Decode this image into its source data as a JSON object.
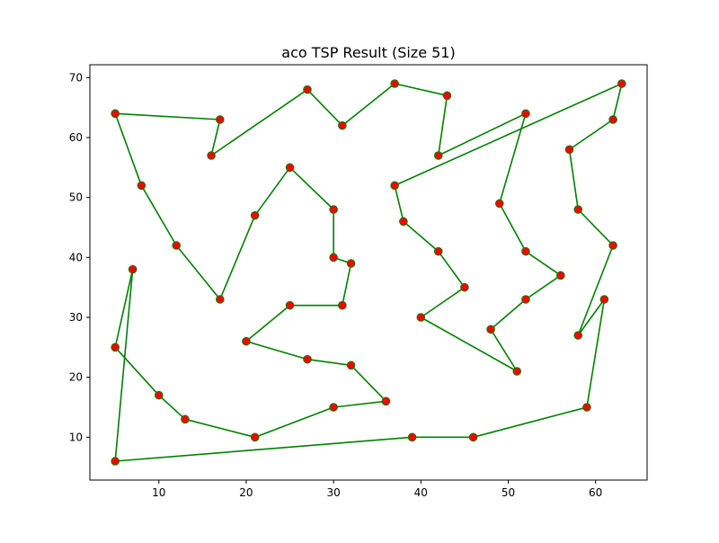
{
  "chart_data": {
    "type": "line",
    "title": "aco TSP Result (Size 51)",
    "xlabel": "",
    "ylabel": "",
    "xlim": [
      2.1,
      65.9
    ],
    "ylim": [
      2.85,
      72.15
    ],
    "x_ticks": [
      10,
      20,
      30,
      40,
      50,
      60
    ],
    "y_ticks": [
      10,
      20,
      30,
      40,
      50,
      60,
      70
    ],
    "grid": false,
    "line_color": "#008000",
    "marker_color": "#ff0000",
    "marker_edge_color": "#008000",
    "tour": [
      [
        5,
        64
      ],
      [
        17,
        63
      ],
      [
        16,
        57
      ],
      [
        27,
        68
      ],
      [
        31,
        62
      ],
      [
        37,
        69
      ],
      [
        43,
        67
      ],
      [
        42,
        57
      ],
      [
        52,
        64
      ],
      [
        49,
        49
      ],
      [
        52,
        41
      ],
      [
        56,
        37
      ],
      [
        52,
        33
      ],
      [
        48,
        28
      ],
      [
        51,
        21
      ],
      [
        40,
        30
      ],
      [
        45,
        35
      ],
      [
        42,
        41
      ],
      [
        38,
        46
      ],
      [
        37,
        52
      ],
      [
        63,
        69
      ],
      [
        62,
        63
      ],
      [
        57,
        58
      ],
      [
        58,
        48
      ],
      [
        62,
        42
      ],
      [
        58,
        27
      ],
      [
        61,
        33
      ],
      [
        59,
        15
      ],
      [
        46,
        10
      ],
      [
        39,
        10
      ],
      [
        5,
        6
      ],
      [
        7,
        38
      ],
      [
        5,
        25
      ],
      [
        10,
        17
      ],
      [
        13,
        13
      ],
      [
        21,
        10
      ],
      [
        30,
        15
      ],
      [
        36,
        16
      ],
      [
        32,
        22
      ],
      [
        27,
        23
      ],
      [
        20,
        26
      ],
      [
        25,
        32
      ],
      [
        31,
        32
      ],
      [
        32,
        39
      ],
      [
        30,
        40
      ],
      [
        30,
        48
      ],
      [
        25,
        55
      ],
      [
        21,
        47
      ],
      [
        17,
        33
      ],
      [
        12,
        42
      ],
      [
        8,
        52
      ]
    ]
  }
}
